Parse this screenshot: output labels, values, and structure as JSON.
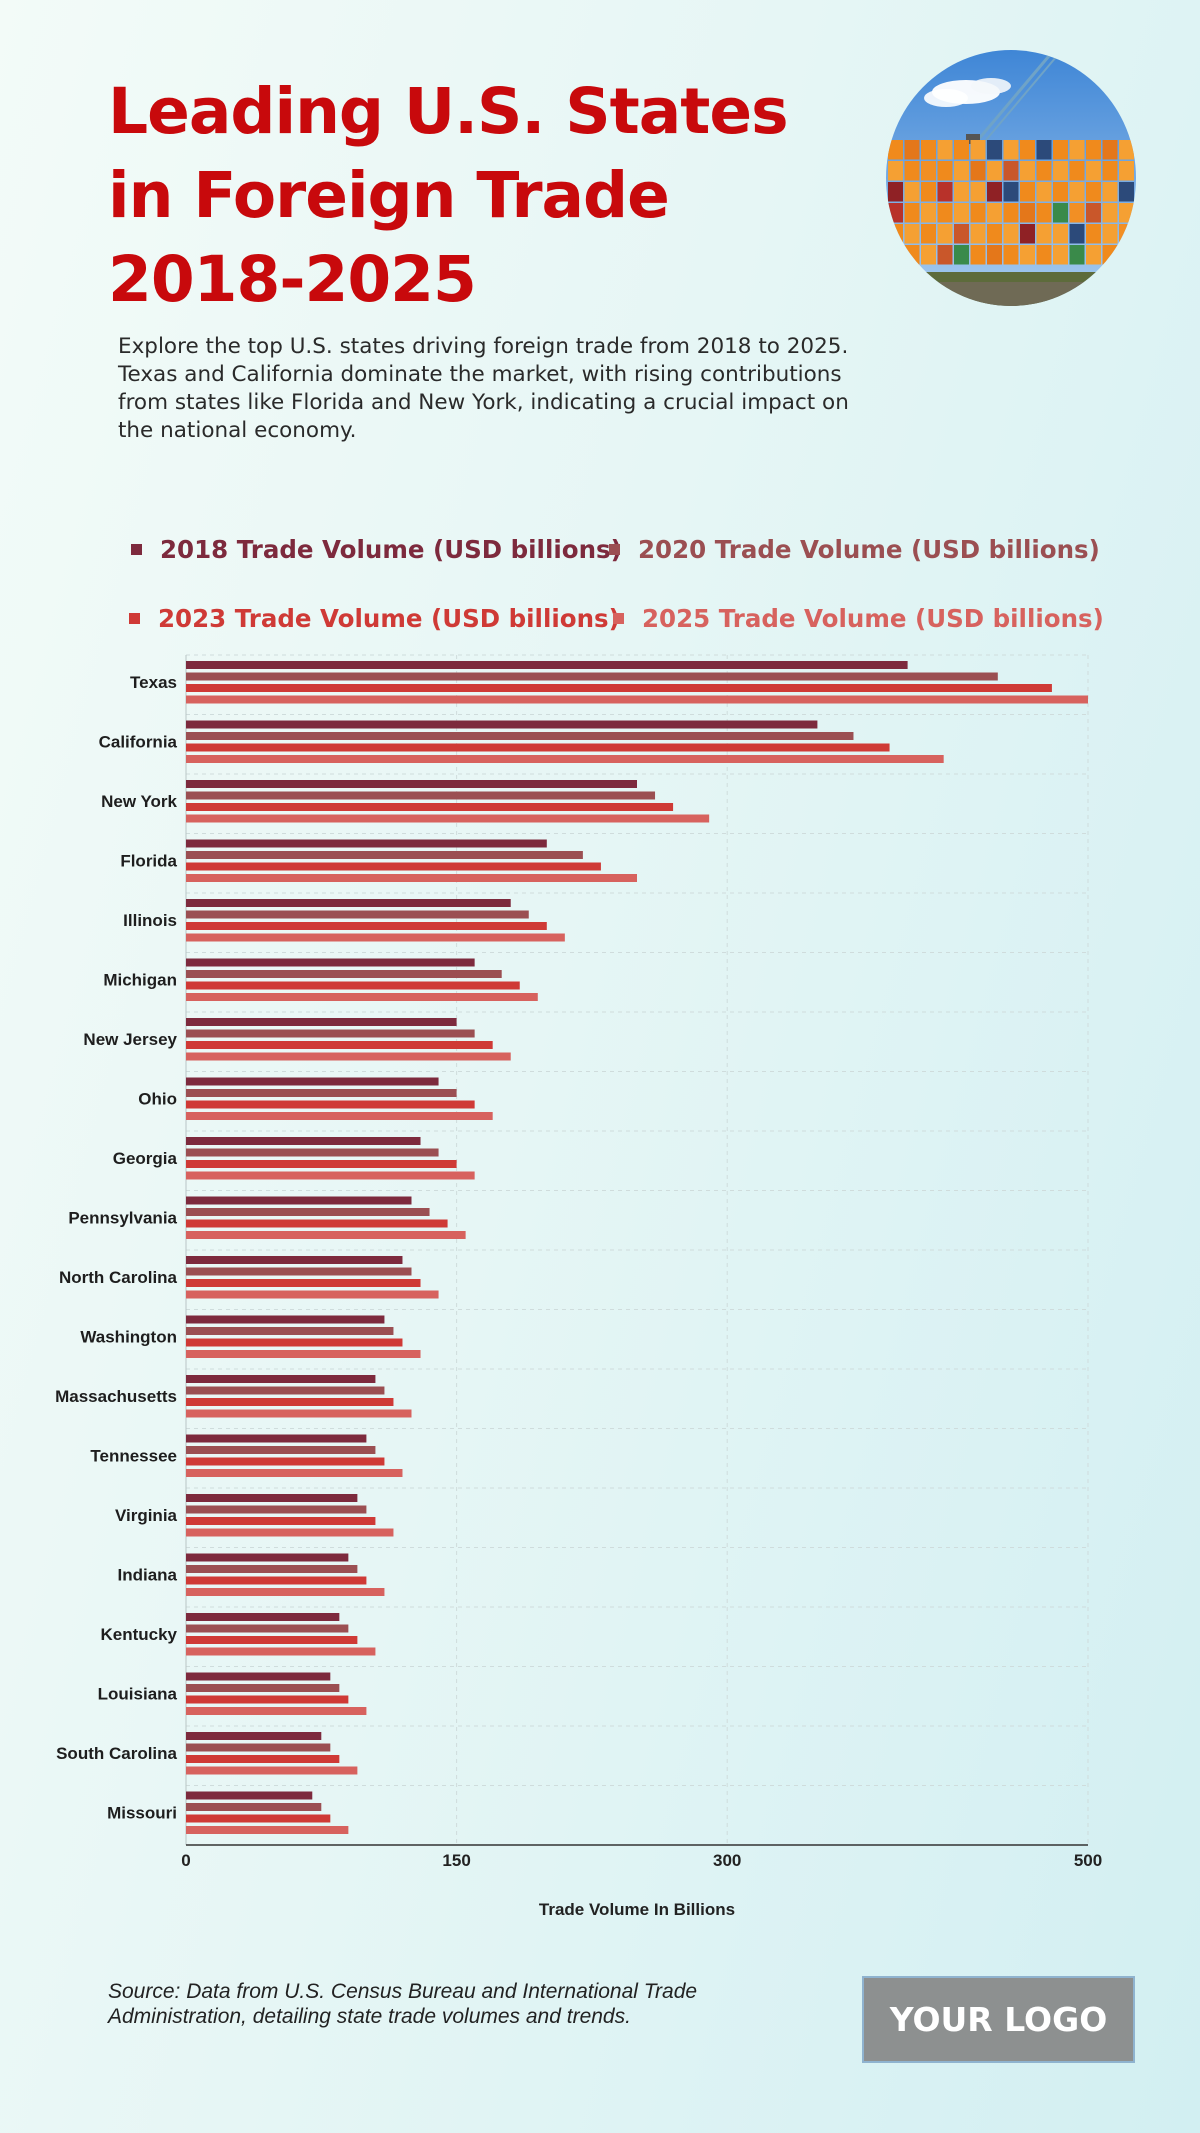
{
  "title_lines": [
    "Leading U.S. States",
    "in Foreign Trade",
    "2018-2025"
  ],
  "description_lines": [
    "Explore the top U.S. states driving foreign trade from 2018 to 2025.",
    "Texas and California dominate the market, with rising contributions",
    "from states like Florida and New York, indicating a crucial impact on",
    "the national economy."
  ],
  "photo": {
    "icon": "shipping-containers-photo"
  },
  "source_lines": [
    "Source: Data from U.S. Census Bureau and International Trade",
    "Administration, detailing state trade volumes and trends."
  ],
  "logo_text": "YOUR LOGO",
  "colors": {
    "title": "#c8090c",
    "series": [
      "#7d2a3d",
      "#9b4f52",
      "#cf3a36",
      "#d7625e"
    ]
  },
  "chart_data": {
    "type": "bar",
    "orientation": "horizontal",
    "categories": [
      "Texas",
      "California",
      "New York",
      "Florida",
      "Illinois",
      "Michigan",
      "New Jersey",
      "Ohio",
      "Georgia",
      "Pennsylvania",
      "North Carolina",
      "Washington",
      "Massachusetts",
      "Tennessee",
      "Virginia",
      "Indiana",
      "Kentucky",
      "Louisiana",
      "South Carolina",
      "Missouri"
    ],
    "series": [
      {
        "name": "2018 Trade Volume (USD billions)",
        "values": [
          400,
          350,
          250,
          200,
          180,
          160,
          150,
          140,
          130,
          125,
          120,
          110,
          105,
          100,
          95,
          90,
          85,
          80,
          75,
          70
        ]
      },
      {
        "name": "2020 Trade Volume (USD billions)",
        "values": [
          450,
          370,
          260,
          220,
          190,
          175,
          160,
          150,
          140,
          135,
          125,
          115,
          110,
          105,
          100,
          95,
          90,
          85,
          80,
          75
        ]
      },
      {
        "name": "2023 Trade Volume (USD billions)",
        "values": [
          480,
          390,
          270,
          230,
          200,
          185,
          170,
          160,
          150,
          145,
          130,
          120,
          115,
          110,
          105,
          100,
          95,
          90,
          85,
          80
        ]
      },
      {
        "name": "2025 Trade Volume (USD billions)",
        "values": [
          500,
          420,
          290,
          250,
          210,
          195,
          180,
          170,
          160,
          155,
          140,
          130,
          125,
          120,
          115,
          110,
          105,
          100,
          95,
          90
        ]
      }
    ],
    "xlabel": "Trade Volume In Billions",
    "ylabel": "",
    "xlim": [
      0,
      500
    ],
    "xticks": [
      0,
      150,
      300,
      500
    ],
    "grid": true,
    "legend_position": "top"
  }
}
